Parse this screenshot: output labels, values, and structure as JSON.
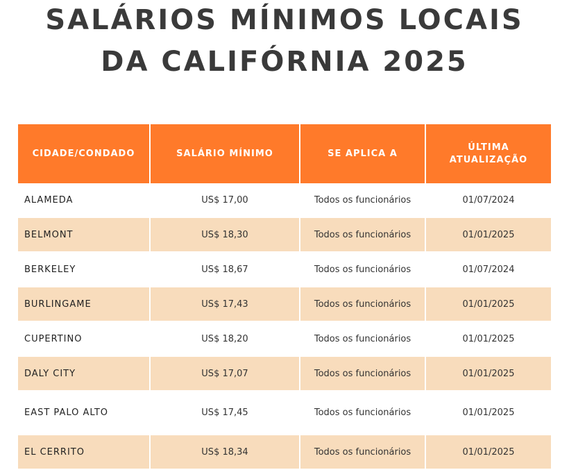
{
  "title": {
    "line1": "SALÁRIOS MÍNIMOS LOCAIS",
    "line2": "DA CALIFÓRNIA 2025"
  },
  "colors": {
    "header": "#ff7a2a",
    "shaded_row": "#f8dcbc",
    "title": "#3a3a3a"
  },
  "table": {
    "headers": [
      "CIDADE/CONDADO",
      "SALÁRIO MÍNIMO",
      "SE APLICA A",
      "ÚLTIMA ATUALIZAÇÃO"
    ],
    "rows": [
      [
        "ALAMEDA",
        "US$ 17,00",
        "Todos os funcionários",
        "01/07/2024"
      ],
      [
        "BELMONT",
        "US$ 18,30",
        "Todos os funcionários",
        "01/01/2025"
      ],
      [
        "BERKELEY",
        "US$ 18,67",
        "Todos os funcionários",
        "01/07/2024"
      ],
      [
        "BURLINGAME",
        "US$ 17,43",
        "Todos os funcionários",
        "01/01/2025"
      ],
      [
        "CUPERTINO",
        "US$ 18,20",
        "Todos os funcionários",
        "01/01/2025"
      ],
      [
        "DALY CITY",
        "US$ 17,07",
        "Todos os funcionários",
        "01/01/2025"
      ],
      [
        "EAST PALO ALTO",
        "US$ 17,45",
        "Todos os funcionários",
        "01/01/2025"
      ],
      [
        "EL CERRITO",
        "US$ 18,34",
        "Todos os funcionários",
        "01/01/2025"
      ]
    ]
  }
}
